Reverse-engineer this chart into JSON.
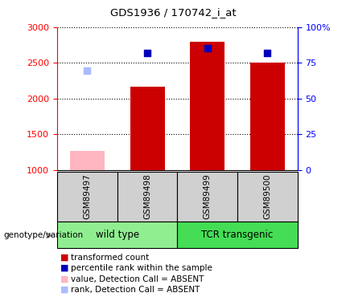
{
  "title": "GDS1936 / 170742_i_at",
  "samples": [
    "GSM89497",
    "GSM89498",
    "GSM89499",
    "GSM89500"
  ],
  "bar_bottom": 1000,
  "ylim_left": [
    1000,
    3000
  ],
  "ylim_right": [
    0,
    100
  ],
  "yticks_left": [
    1000,
    1500,
    2000,
    2500,
    3000
  ],
  "yticks_right": [
    0,
    25,
    50,
    75,
    100
  ],
  "yticklabels_right": [
    "0",
    "25",
    "50",
    "75",
    "100%"
  ],
  "transformed_counts": [
    null,
    2165,
    2800,
    2500
  ],
  "transformed_counts_absent": [
    1270,
    null,
    null,
    null
  ],
  "percentile_ranks_left": [
    null,
    2640,
    2710,
    2640
  ],
  "percentile_ranks_absent_left": [
    2390,
    null,
    null,
    null
  ],
  "bar_color_present": "#CC0000",
  "bar_color_absent": "#FFB6C1",
  "dot_color_present": "#0000BB",
  "dot_color_absent": "#AABBFF",
  "bar_width": 0.32,
  "dotsize": 28,
  "legend_items": [
    {
      "label": "transformed count",
      "color": "#CC0000"
    },
    {
      "label": "percentile rank within the sample",
      "color": "#0000BB"
    },
    {
      "label": "value, Detection Call = ABSENT",
      "color": "#FFB6C1"
    },
    {
      "label": "rank, Detection Call = ABSENT",
      "color": "#AABBFF"
    }
  ],
  "group_label_text": "genotype/variation",
  "gray_bg": "#D0D0D0",
  "group1_bg": "#90EE90",
  "group2_bg": "#44DD55",
  "arrow_color": "#888888"
}
